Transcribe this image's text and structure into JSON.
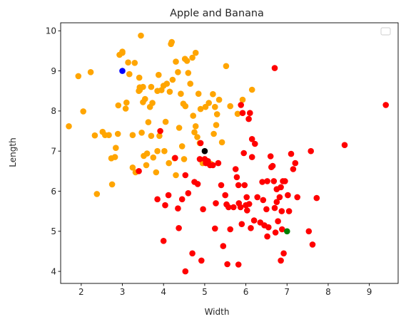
{
  "chart_data": {
    "type": "scatter",
    "title": "Apple and Banana",
    "xlabel": "Width",
    "ylabel": "Length",
    "xlim": [
      1.5,
      9.7
    ],
    "ylim": [
      3.7,
      10.2
    ],
    "xticks": [
      "2",
      "3",
      "4",
      "5",
      "6",
      "7",
      "8",
      "9"
    ],
    "yticks": [
      "4",
      "5",
      "6",
      "7",
      "8",
      "9",
      "10"
    ],
    "legend": {
      "placement": "top-right",
      "entries": []
    },
    "grid": false,
    "series": [
      {
        "color": "#ffa500",
        "points": [
          [
            1.7,
            7.62
          ],
          [
            1.93,
            8.87
          ],
          [
            2.05,
            7.99
          ],
          [
            2.23,
            8.97
          ],
          [
            2.33,
            7.39
          ],
          [
            2.38,
            5.93
          ],
          [
            2.52,
            7.48
          ],
          [
            2.58,
            7.4
          ],
          [
            2.67,
            7.4
          ],
          [
            2.73,
            6.82
          ],
          [
            2.75,
            6.17
          ],
          [
            2.82,
            6.85
          ],
          [
            2.84,
            7.08
          ],
          [
            2.89,
            7.43
          ],
          [
            2.9,
            8.14
          ],
          [
            2.93,
            9.4
          ],
          [
            3.0,
            9.48
          ],
          [
            3.08,
            8.06
          ],
          [
            3.1,
            8.21
          ],
          [
            3.14,
            9.21
          ],
          [
            3.17,
            8.92
          ],
          [
            3.25,
            7.4
          ],
          [
            3.25,
            6.59
          ],
          [
            3.32,
            6.47
          ],
          [
            3.41,
            8.83
          ],
          [
            3.42,
            8.59
          ],
          [
            3.42,
            8.52
          ],
          [
            3.45,
            9.88
          ],
          [
            3.47,
            7.46
          ],
          [
            3.5,
            8.22
          ],
          [
            3.52,
            6.88
          ],
          [
            3.55,
            8.3
          ],
          [
            3.58,
            6.65
          ],
          [
            3.6,
            6.94
          ],
          [
            3.63,
            7.72
          ],
          [
            3.67,
            8.1
          ],
          [
            3.7,
            8.6
          ],
          [
            3.7,
            7.38
          ],
          [
            3.73,
            8.2
          ],
          [
            3.75,
            6.84
          ],
          [
            3.82,
            6.47
          ],
          [
            3.85,
            8.5
          ],
          [
            3.85,
            7.0
          ],
          [
            3.88,
            8.9
          ],
          [
            3.9,
            7.38
          ],
          [
            3.95,
            8.52
          ],
          [
            4.0,
            8.63
          ],
          [
            4.02,
            7.0
          ],
          [
            4.05,
            7.73
          ],
          [
            4.08,
            8.68
          ],
          [
            4.13,
            6.7
          ],
          [
            4.15,
            8.48
          ],
          [
            4.18,
            9.67
          ],
          [
            4.22,
            8.78
          ],
          [
            4.27,
            6.82
          ],
          [
            4.3,
            6.4
          ],
          [
            4.35,
            8.97
          ],
          [
            4.38,
            7.58
          ],
          [
            4.42,
            8.43
          ],
          [
            4.45,
            7.12
          ],
          [
            4.48,
            8.18
          ],
          [
            4.52,
            9.3
          ],
          [
            4.53,
            8.12
          ],
          [
            4.57,
            9.25
          ],
          [
            4.6,
            8.95
          ],
          [
            4.65,
            8.68
          ],
          [
            4.7,
            9.33
          ],
          [
            4.72,
            7.88
          ],
          [
            4.75,
            7.47
          ],
          [
            4.78,
            7.62
          ],
          [
            4.78,
            9.45
          ],
          [
            4.82,
            7.35
          ],
          [
            4.85,
            8.43
          ],
          [
            4.88,
            7.2
          ],
          [
            4.9,
            8.05
          ],
          [
            4.95,
            6.7
          ],
          [
            5.02,
            8.1
          ],
          [
            5.1,
            8.2
          ],
          [
            5.15,
            6.68
          ],
          [
            5.2,
            8.42
          ],
          [
            5.22,
            7.43
          ],
          [
            5.25,
            8.1
          ],
          [
            5.28,
            7.65
          ],
          [
            5.3,
            7.92
          ],
          [
            5.35,
            8.28
          ],
          [
            5.42,
            7.22
          ],
          [
            5.52,
            9.12
          ],
          [
            5.62,
            8.12
          ],
          [
            5.8,
            7.93
          ],
          [
            5.92,
            8.28
          ],
          [
            6.15,
            8.53
          ],
          [
            4.2,
            9.72
          ],
          [
            4.3,
            9.23
          ],
          [
            3.3,
            9.2
          ],
          [
            4.5,
            6.8
          ],
          [
            3.5,
            8.6
          ],
          [
            3.4,
            8.5
          ],
          [
            3.0,
            9.45
          ]
        ]
      },
      {
        "color": "#ff0000",
        "points": [
          [
            3.85,
            5.8
          ],
          [
            3.92,
            7.5
          ],
          [
            4.0,
            4.76
          ],
          [
            4.04,
            5.65
          ],
          [
            4.12,
            5.9
          ],
          [
            4.28,
            6.83
          ],
          [
            4.35,
            5.57
          ],
          [
            4.37,
            5.08
          ],
          [
            4.45,
            5.8
          ],
          [
            4.53,
            4.0
          ],
          [
            4.53,
            6.4
          ],
          [
            4.6,
            5.95
          ],
          [
            4.7,
            4.45
          ],
          [
            4.75,
            6.23
          ],
          [
            4.83,
            6.18
          ],
          [
            4.88,
            6.8
          ],
          [
            4.92,
            4.27
          ],
          [
            4.96,
            5.55
          ],
          [
            5.0,
            6.8
          ],
          [
            5.03,
            6.7
          ],
          [
            5.08,
            6.75
          ],
          [
            5.13,
            6.65
          ],
          [
            5.2,
            6.65
          ],
          [
            5.25,
            5.07
          ],
          [
            5.27,
            5.7
          ],
          [
            5.33,
            6.7
          ],
          [
            5.4,
            6.15
          ],
          [
            5.45,
            4.63
          ],
          [
            5.5,
            5.9
          ],
          [
            5.53,
            5.67
          ],
          [
            5.55,
            4.18
          ],
          [
            5.58,
            5.6
          ],
          [
            5.62,
            5.05
          ],
          [
            5.7,
            5.6
          ],
          [
            5.75,
            6.55
          ],
          [
            5.78,
            6.35
          ],
          [
            5.82,
            6.15
          ],
          [
            5.82,
            4.17
          ],
          [
            5.83,
            5.7
          ],
          [
            5.87,
            5.6
          ],
          [
            5.88,
            8.15
          ],
          [
            5.9,
            5.18
          ],
          [
            5.92,
            7.95
          ],
          [
            5.95,
            6.95
          ],
          [
            5.97,
            6.15
          ],
          [
            6.0,
            5.65
          ],
          [
            6.02,
            5.85
          ],
          [
            6.03,
            5.52
          ],
          [
            6.07,
            7.8
          ],
          [
            6.08,
            5.68
          ],
          [
            6.1,
            7.95
          ],
          [
            6.12,
            5.08
          ],
          [
            6.15,
            6.85
          ],
          [
            6.15,
            7.3
          ],
          [
            6.2,
            5.27
          ],
          [
            6.22,
            7.18
          ],
          [
            6.28,
            5.85
          ],
          [
            6.35,
            5.22
          ],
          [
            6.4,
            6.23
          ],
          [
            6.42,
            5.78
          ],
          [
            6.45,
            5.15
          ],
          [
            6.5,
            5.55
          ],
          [
            6.52,
            4.87
          ],
          [
            6.52,
            6.25
          ],
          [
            6.55,
            5.1
          ],
          [
            6.6,
            6.87
          ],
          [
            6.62,
            6.6
          ],
          [
            6.65,
            6.63
          ],
          [
            6.68,
            6.25
          ],
          [
            6.7,
            9.07
          ],
          [
            6.7,
            5.58
          ],
          [
            6.72,
            4.97
          ],
          [
            6.75,
            6.05
          ],
          [
            6.75,
            5.73
          ],
          [
            6.78,
            5.25
          ],
          [
            6.82,
            5.85
          ],
          [
            6.85,
            6.1
          ],
          [
            6.87,
            5.5
          ],
          [
            6.88,
            5.05
          ],
          [
            6.9,
            6.25
          ],
          [
            6.92,
            4.45
          ],
          [
            6.95,
            6.25
          ],
          [
            7.02,
            5.9
          ],
          [
            7.05,
            5.5
          ],
          [
            7.1,
            6.93
          ],
          [
            7.15,
            6.55
          ],
          [
            7.2,
            6.7
          ],
          [
            7.25,
            5.85
          ],
          [
            7.53,
            5.0
          ],
          [
            7.58,
            7.0
          ],
          [
            7.62,
            4.67
          ],
          [
            7.72,
            5.83
          ],
          [
            8.4,
            7.15
          ],
          [
            9.4,
            8.15
          ],
          [
            3.4,
            6.5
          ],
          [
            4.9,
            7.2
          ],
          [
            6.85,
            4.27
          ]
        ]
      },
      {
        "color": "#0000ff",
        "points": [
          [
            3.0,
            9.0
          ]
        ]
      },
      {
        "color": "#008000",
        "points": [
          [
            7.0,
            5.0
          ]
        ]
      },
      {
        "color": "#000000",
        "points": [
          [
            5.0,
            7.0
          ]
        ]
      }
    ]
  }
}
